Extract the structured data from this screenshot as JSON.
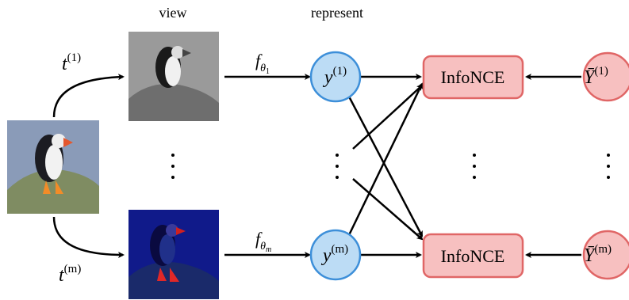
{
  "header": {
    "view": "view",
    "represent": "represent"
  },
  "transforms": [
    {
      "base": "t",
      "sup": "(1)"
    },
    {
      "base": "t",
      "sup": "(m)"
    }
  ],
  "encoders": [
    {
      "base": "f",
      "sub": "θ",
      "subsub": "1"
    },
    {
      "base": "f",
      "sub": "θ",
      "subsub": "m"
    }
  ],
  "representations": [
    {
      "base": "y",
      "sup": "(1)"
    },
    {
      "base": "y",
      "sup": "(m)"
    }
  ],
  "losses": [
    "InfoNCE",
    "InfoNCE"
  ],
  "targets": [
    {
      "base": "Ȳ",
      "sup": "(1)"
    },
    {
      "base": "Ȳ",
      "sup": "(m)"
    }
  ]
}
